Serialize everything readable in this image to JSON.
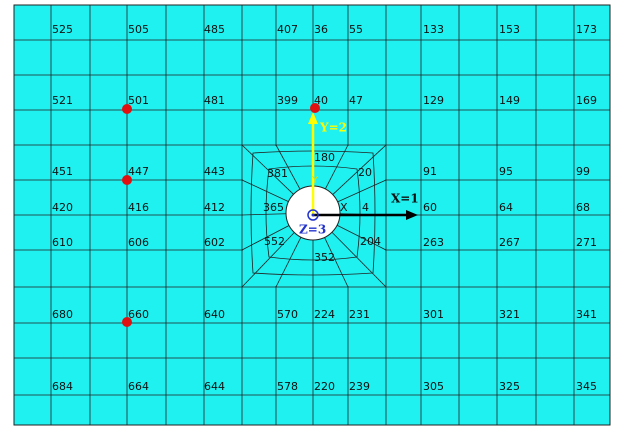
{
  "rows": [
    [
      "525",
      "505",
      "485",
      "407",
      "36",
      "55",
      "133",
      "153",
      "173"
    ],
    [
      "521",
      "501",
      "481",
      "399",
      "40",
      "47",
      "129",
      "149",
      "169"
    ],
    [
      "451",
      "447",
      "443",
      "381",
      "180",
      "20",
      "91",
      "95",
      "99"
    ],
    [
      "420",
      "416",
      "412",
      "365",
      "X",
      "4",
      "60",
      "64",
      "68"
    ],
    [
      "610",
      "606",
      "602",
      "552",
      "352",
      "204",
      "263",
      "267",
      "271"
    ],
    [
      "680",
      "660",
      "640",
      "570",
      "224",
      "231",
      "301",
      "321",
      "341"
    ],
    [
      "684",
      "664",
      "644",
      "578",
      "220",
      "239",
      "305",
      "325",
      "345"
    ]
  ],
  "axes": {
    "x": "X=1",
    "y": "Y=2",
    "z": "Z=3",
    "y_marker": "Y"
  }
}
